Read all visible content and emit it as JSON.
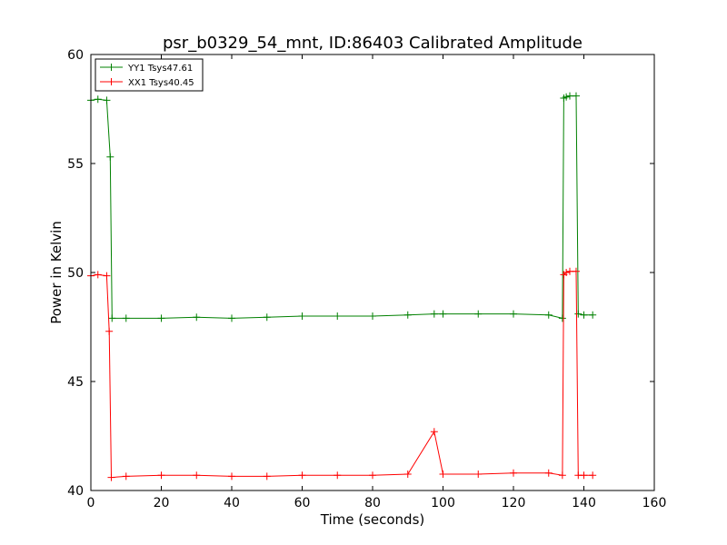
{
  "chart_data": {
    "type": "line",
    "title": "psr_b0329_54_mnt, ID:86403 Calibrated Amplitude",
    "xlabel": "Time (seconds)",
    "ylabel": "Power in Kelvin",
    "xlim": [
      0,
      160
    ],
    "ylim": [
      40,
      60
    ],
    "xticks": [
      0,
      20,
      40,
      60,
      80,
      100,
      120,
      140,
      160
    ],
    "yticks": [
      40,
      45,
      50,
      55,
      60
    ],
    "grid": false,
    "legend_position": "top-left",
    "marker": "+",
    "series": [
      {
        "name": "YY1 Tsys47.61",
        "color": "#008000",
        "x": [
          0,
          2,
          4.5,
          5.5,
          6,
          10,
          20,
          30,
          40,
          50,
          60,
          70,
          80,
          90,
          97.5,
          100,
          110,
          120,
          130,
          133.9,
          134.3,
          135,
          136,
          137.8,
          138.4,
          140,
          142.5
        ],
        "y": [
          57.9,
          57.95,
          57.9,
          55.3,
          47.9,
          47.9,
          47.9,
          47.95,
          47.9,
          47.95,
          48.0,
          48.0,
          48.0,
          48.05,
          48.1,
          48.1,
          48.1,
          48.1,
          48.05,
          47.9,
          58.0,
          58.05,
          58.1,
          58.1,
          48.1,
          48.05,
          48.05
        ]
      },
      {
        "name": "XX1 Tsys40.45",
        "color": "#ff0000",
        "x": [
          0,
          2,
          4.5,
          5.2,
          5.8,
          10,
          20,
          30,
          40,
          50,
          60,
          70,
          80,
          90,
          97.5,
          100,
          110,
          120,
          130,
          133.9,
          134.3,
          135,
          136,
          137.8,
          138.4,
          140,
          142.5
        ],
        "y": [
          49.85,
          49.9,
          49.85,
          47.3,
          40.6,
          40.65,
          40.7,
          40.7,
          40.65,
          40.65,
          40.7,
          40.7,
          40.7,
          40.75,
          42.7,
          40.75,
          40.75,
          40.8,
          40.8,
          40.7,
          49.9,
          50.0,
          50.05,
          50.05,
          40.7,
          40.7,
          40.7
        ]
      }
    ]
  }
}
